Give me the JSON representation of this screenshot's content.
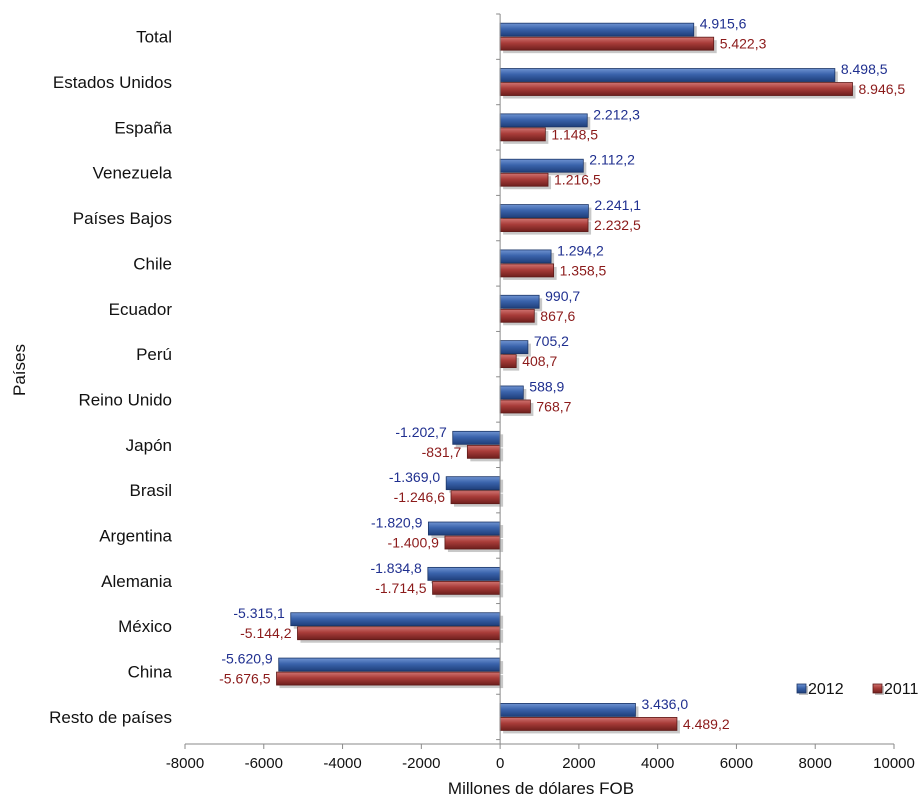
{
  "chart_data": {
    "type": "bar",
    "orientation": "horizontal",
    "xlabel": "Millones de dólares FOB",
    "ylabel": "Países",
    "xlim": [
      -8000,
      10000
    ],
    "xticks": [
      "-8000",
      "-6000",
      "-4000",
      "-2000",
      "0",
      "2000",
      "4000",
      "6000",
      "8000",
      "10000"
    ],
    "categories": [
      "Total",
      "Estados Unidos",
      "España",
      "Venezuela",
      "Países Bajos",
      "Chile",
      "Ecuador",
      "Perú",
      "Reino Unido",
      "Japón",
      "Brasil",
      "Argentina",
      "Alemania",
      "México",
      "China",
      "Resto de países"
    ],
    "series": [
      {
        "name": "2012",
        "color": "#2f5597",
        "label_color": "#1f2f8f",
        "values": [
          4915.6,
          8498.5,
          2212.3,
          2112.2,
          2241.1,
          1294.2,
          990.7,
          705.2,
          588.9,
          -1202.7,
          -1369.0,
          -1820.9,
          -1834.8,
          -5315.1,
          -5620.9,
          3436.0
        ],
        "labels": [
          "4.915,6",
          "8.498,5",
          "2.212,3",
          "2.112,2",
          "2.241,1",
          "1.294,2",
          "990,7",
          "705,2",
          "588,9",
          "-1.202,7",
          "-1.369,0",
          "-1.820,9",
          "-1.834,8",
          "-5.315,1",
          "-5.620,9",
          "3.436,0"
        ]
      },
      {
        "name": "2011",
        "color": "#a23a37",
        "label_color": "#8b1a1a",
        "values": [
          5422.3,
          8946.5,
          1148.5,
          1216.5,
          2232.5,
          1358.5,
          867.6,
          408.7,
          768.7,
          -831.7,
          -1246.6,
          -1400.9,
          -1714.5,
          -5144.2,
          -5676.5,
          4489.2
        ],
        "labels": [
          "5.422,3",
          "8.946,5",
          "1.148,5",
          "1.216,5",
          "2.232,5",
          "1.358,5",
          "867,6",
          "408,7",
          "768,7",
          "-831,7",
          "-1.246,6",
          "-1.400,9",
          "-1.714,5",
          "-5.144,2",
          "-5.676,5",
          "4.489,2"
        ]
      }
    ],
    "legend": {
      "position": "bottom-right",
      "items": [
        "2012",
        "2011"
      ]
    },
    "grid": false
  }
}
